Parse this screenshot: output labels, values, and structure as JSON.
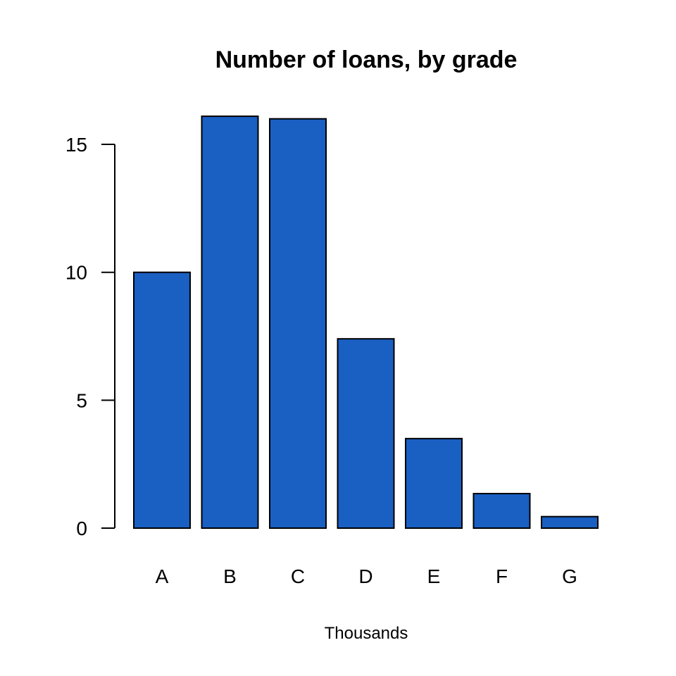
{
  "chart_data": {
    "type": "bar",
    "title": "Number of loans, by grade",
    "xlabel": "Thousands",
    "ylabel": "",
    "categories": [
      "A",
      "B",
      "C",
      "D",
      "E",
      "F",
      "G"
    ],
    "values": [
      10.0,
      16.1,
      16.0,
      7.4,
      3.5,
      1.35,
      0.45
    ],
    "ylim": [
      0,
      15
    ],
    "yticks": [
      0,
      5,
      10,
      15
    ],
    "ytick_labels": [
      "0",
      "5",
      "10",
      "15"
    ],
    "bar_color": "#1a5fc2",
    "grid": false,
    "legend": false
  }
}
